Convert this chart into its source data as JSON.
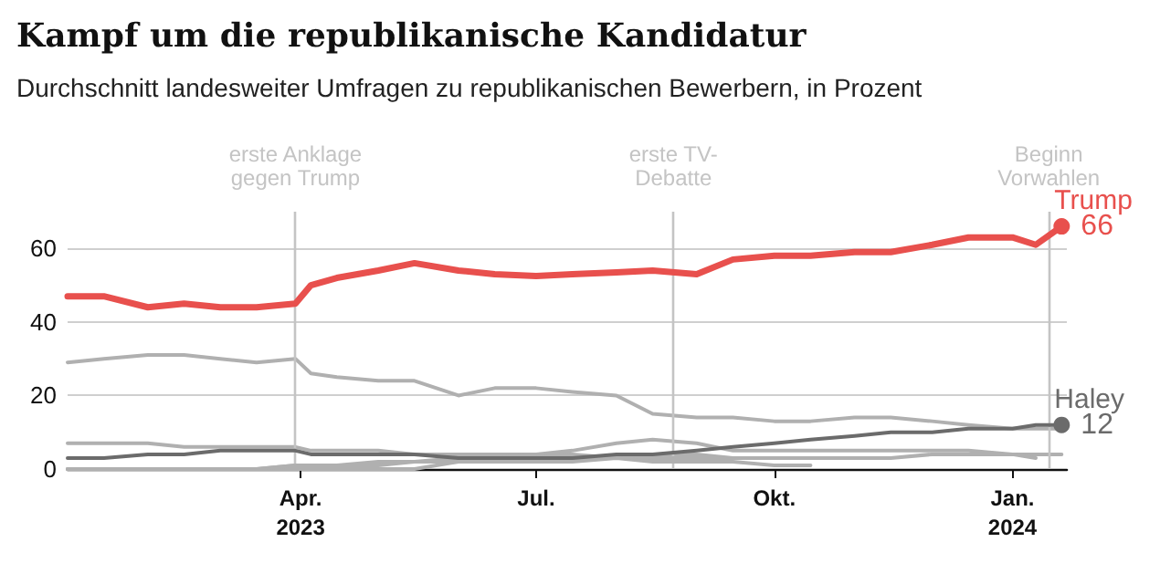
{
  "chart_data": {
    "type": "line",
    "title": "Kampf um die republikanische Kandidatur",
    "subtitle": "Durchschnitt landesweiter Umfragen zu republikanischen Bewerbern, in Prozent",
    "x": [
      "2023-01-01",
      "2023-01-15",
      "2023-02-01",
      "2023-02-15",
      "2023-03-01",
      "2023-03-15",
      "2023-03-30",
      "2023-04-05",
      "2023-04-15",
      "2023-05-01",
      "2023-05-15",
      "2023-06-01",
      "2023-06-15",
      "2023-07-01",
      "2023-07-15",
      "2023-08-01",
      "2023-08-15",
      "2023-09-01",
      "2023-09-15",
      "2023-10-01",
      "2023-10-15",
      "2023-11-01",
      "2023-11-15",
      "2023-12-01",
      "2023-12-15",
      "2024-01-01",
      "2024-01-10",
      "2024-01-20"
    ],
    "series": [
      {
        "color": "#b0b0b0",
        "values": [
          29,
          30,
          31,
          31,
          30,
          29,
          30,
          26,
          25,
          24,
          24,
          20,
          22,
          22,
          21,
          20,
          15,
          14,
          14,
          13,
          13,
          14,
          14,
          13,
          12,
          11,
          11,
          11
        ]
      },
      {
        "color": "#b0b0b0",
        "values": [
          7,
          7,
          7,
          6,
          6,
          6,
          6,
          5,
          5,
          5,
          4,
          4,
          4,
          4,
          4,
          3,
          4,
          4,
          3,
          3,
          3,
          null,
          null,
          null,
          null,
          null,
          null,
          null
        ]
      },
      {
        "color": "#b0b0b0",
        "values": [
          0,
          0,
          0,
          0,
          0,
          0,
          1,
          1,
          1,
          2,
          2,
          3,
          3,
          4,
          5,
          7,
          8,
          7,
          5,
          5,
          5,
          5,
          5,
          5,
          5,
          4,
          4,
          4
        ]
      },
      {
        "color": "#b0b0b0",
        "values": [
          0,
          0,
          0,
          0,
          0,
          0,
          0,
          0,
          0,
          0,
          0,
          2,
          2,
          3,
          3,
          3,
          3,
          3,
          3,
          3,
          3,
          3,
          3,
          4,
          4,
          4,
          3,
          null
        ]
      },
      {
        "color": "#b0b0b0",
        "values": [
          0,
          0,
          0,
          0,
          0,
          0,
          1,
          1,
          1,
          1,
          2,
          2,
          2,
          2,
          2,
          3,
          2,
          2,
          2,
          1,
          1,
          null,
          null,
          null,
          null,
          null,
          null,
          null
        ]
      },
      {
        "name": "Haley",
        "color": "#6b6b6b",
        "values": [
          3,
          3,
          4,
          4,
          5,
          5,
          5,
          4,
          4,
          4,
          4,
          3,
          3,
          3,
          3,
          4,
          4,
          5,
          6,
          7,
          8,
          9,
          10,
          10,
          11,
          11,
          12,
          12
        ],
        "value_labels": [
          null,
          null,
          null,
          null,
          null,
          null,
          null,
          null,
          null,
          null,
          null,
          null,
          null,
          null,
          null,
          null,
          null,
          null,
          null,
          null,
          null,
          null,
          null,
          null,
          null,
          null,
          null,
          "12"
        ]
      },
      {
        "name": "Trump",
        "color": "#e8504d",
        "values": [
          47,
          47,
          44,
          45,
          44,
          44,
          45,
          50,
          52,
          54,
          56,
          54,
          53,
          52.5,
          53,
          53.5,
          54,
          53,
          57,
          58,
          58,
          59,
          59,
          61,
          63,
          63,
          61,
          66
        ],
        "value_labels": [
          null,
          null,
          null,
          null,
          null,
          null,
          null,
          null,
          null,
          null,
          null,
          null,
          null,
          null,
          null,
          null,
          null,
          null,
          null,
          null,
          null,
          null,
          null,
          null,
          null,
          null,
          null,
          "66"
        ]
      }
    ],
    "xlim": [
      "2023-01-01",
      "2024-01-22"
    ],
    "xticks": [
      {
        "value": "2023-04-01",
        "label": "Apr.\n2023"
      },
      {
        "value": "2023-07-01",
        "label": "Jul."
      },
      {
        "value": "2023-10-01",
        "label": "Okt."
      },
      {
        "value": "2024-01-01",
        "label": "Jan.\n2024"
      }
    ],
    "ylim": [
      0,
      70
    ],
    "yticks": [
      0,
      20,
      40,
      60
    ],
    "grid": "y",
    "legend": false,
    "marker": "none",
    "line_style": "solid",
    "ref_lines": [
      {
        "axis": "x",
        "value": "2023-03-30",
        "label": "erste Anklage\ngegen Trump",
        "color": "#c4c4c4"
      },
      {
        "axis": "x",
        "value": "2023-08-23",
        "label": "erste TV-\nDebatte",
        "color": "#c4c4c4"
      },
      {
        "axis": "x",
        "value": "2024-01-15",
        "label": "Beginn\nVorwahlen",
        "color": "#c4c4c4"
      }
    ]
  }
}
